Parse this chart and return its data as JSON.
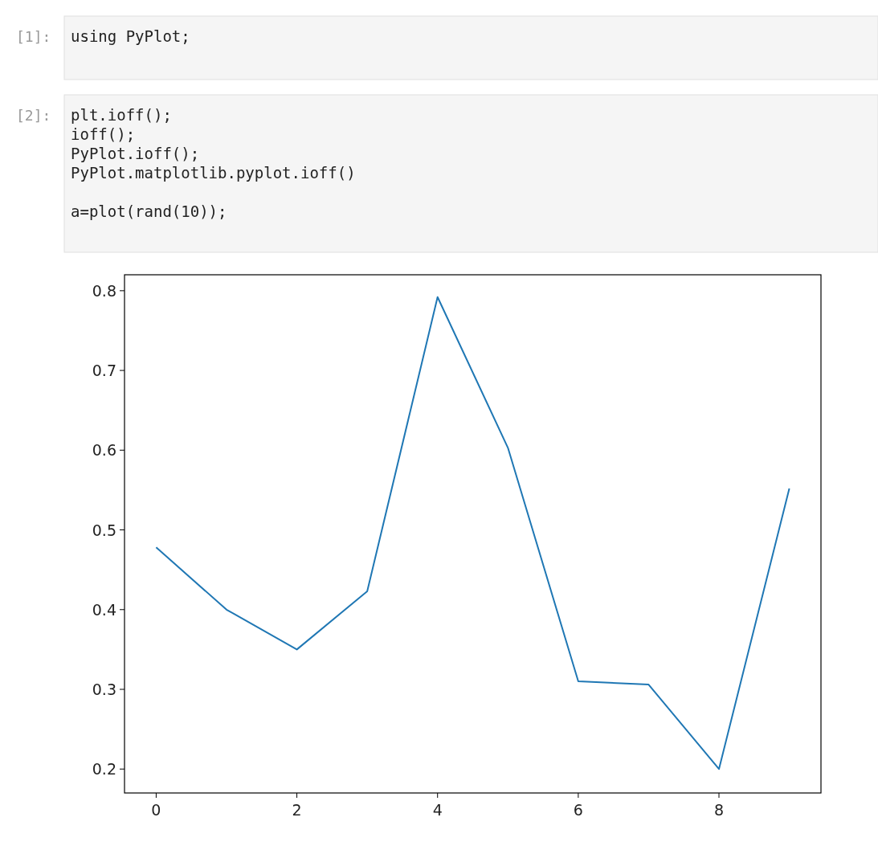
{
  "chart_data": {
    "type": "line",
    "x": [
      0,
      1,
      2,
      3,
      4,
      5,
      6,
      7,
      8,
      9
    ],
    "series": [
      {
        "color": "#1f77b4",
        "values": [
          0.478,
          0.4,
          0.35,
          0.423,
          0.792,
          0.603,
          0.31,
          0.306,
          0.2,
          0.552
        ]
      }
    ],
    "xlim": [
      -0.45,
      9.45
    ],
    "ylim": [
      0.17,
      0.82
    ],
    "xticks": [
      0,
      2,
      4,
      6,
      8
    ],
    "yticks": [
      0.2,
      0.3,
      0.4,
      0.5,
      0.6,
      0.7,
      0.8
    ],
    "grid": false,
    "marker": "none",
    "line_style": "solid",
    "annotations": [
      "[1]:",
      "using PyPlot;",
      "[2]:",
      "plt.ioff();\nioff();\nPyPlot.ioff();\nPyPlot.matplotlib.pyplot.ioff()\n\na=plot(rand(10));"
    ]
  }
}
